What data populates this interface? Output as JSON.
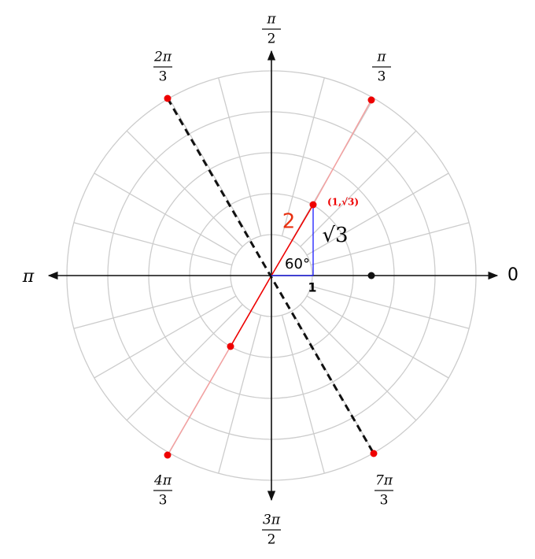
{
  "angle_labels": [
    {
      "numerator": "π",
      "denominator": "2"
    },
    {
      "numerator": "π",
      "denominator": "3"
    },
    {
      "numerator": "2π",
      "denominator": "3"
    },
    {
      "numerator": "4π",
      "denominator": "3"
    },
    {
      "numerator": "3π",
      "denominator": "2"
    },
    {
      "numerator": "7π",
      "denominator": "3"
    }
  ],
  "axis_labels": {
    "right": "0",
    "left": "π"
  },
  "annotations": {
    "hypotenuse": "2",
    "opposite": "√3",
    "angle": "60°",
    "adjacent": "1",
    "point": "(1,√3)"
  }
}
